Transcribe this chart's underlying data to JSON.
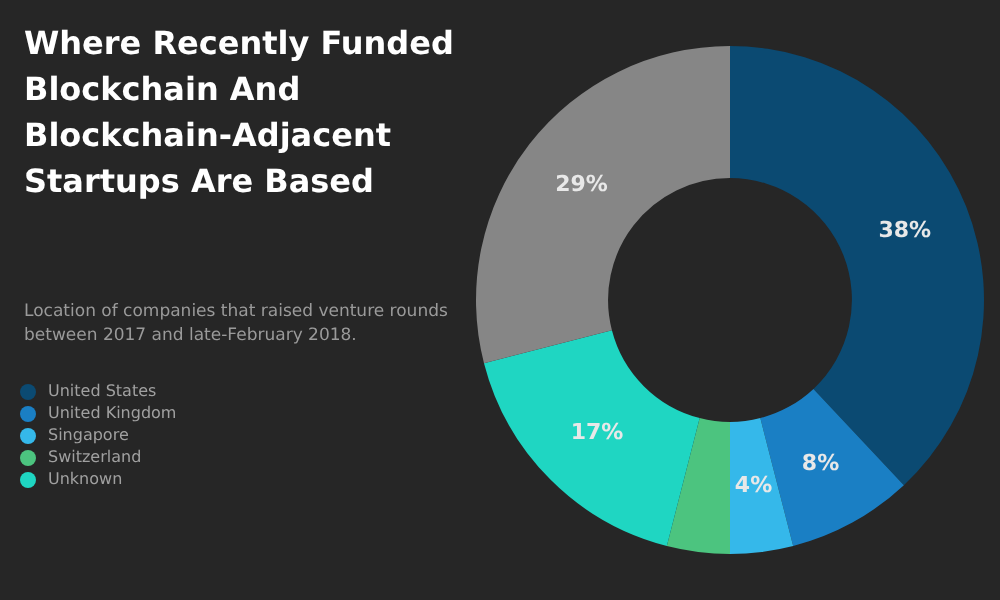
{
  "chart_data": {
    "type": "donut",
    "title": "Where Recently Funded Blockchain And Blockchain-Adjacent Startups Are Based",
    "subtitle": "Location of companies that raised venture rounds between 2017 and late-February 2018.",
    "categories": [
      "United States",
      "United Kingdom",
      "Singapore",
      "Switzerland",
      "Unknown",
      null
    ],
    "values": [
      38,
      8,
      4,
      4,
      17,
      29
    ],
    "colors": [
      "#0b4a72",
      "#1a7fc4",
      "#35b8ea",
      "#4cc47f",
      "#1fd6c2",
      "#868686"
    ],
    "value_labels": [
      "38%",
      "8%",
      "4%",
      null,
      "17%",
      "29%"
    ],
    "legend": "left"
  }
}
